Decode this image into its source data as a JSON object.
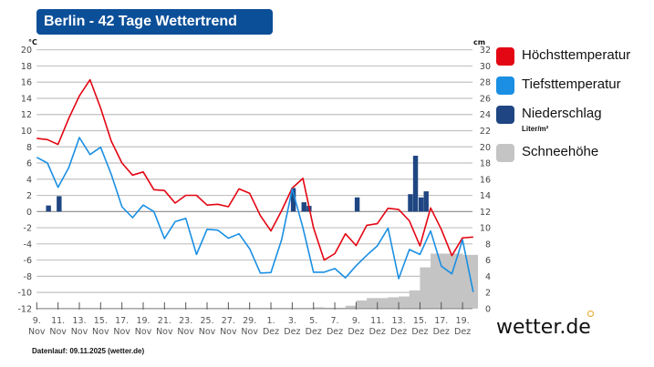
{
  "title": "Berlin - 42 Tage Wettertrend",
  "footer": "Datenlauf: 09.11.2025 (wetter.de)",
  "logo": "wetter.de",
  "legend": {
    "max": {
      "label": "Höchsttemperatur",
      "color": "#e30613"
    },
    "min": {
      "label": "Tiefsttemperatur",
      "color": "#1a8fe3"
    },
    "precip": {
      "label": "Niederschlag",
      "sublabel": "Liter/m²",
      "color": "#1f4682"
    },
    "snow": {
      "label": "Schneehöhe",
      "color": "#c4c4c4"
    }
  },
  "chart_data": {
    "type": "line",
    "title": "Berlin - 42 Tage Wettertrend",
    "y_left": {
      "unit": "°C",
      "range": [
        -12,
        20
      ],
      "ticks": [
        -12,
        -10,
        -8,
        -6,
        -4,
        -2,
        0,
        2,
        4,
        6,
        8,
        10,
        12,
        14,
        16,
        18,
        20
      ]
    },
    "y_right": {
      "unit": "cm",
      "range": [
        0,
        32
      ],
      "ticks": [
        0,
        2,
        4,
        6,
        8,
        10,
        12,
        14,
        16,
        18,
        20,
        22,
        24,
        26,
        28,
        30,
        32
      ]
    },
    "grid": true,
    "legend_position": "right",
    "dates": [
      "9.11.",
      "10.11.",
      "11.11.",
      "12.11.",
      "13.11.",
      "14.11.",
      "15.11.",
      "16.11.",
      "17.11.",
      "18.11.",
      "19.11.",
      "20.11.",
      "21.11.",
      "22.11.",
      "23.11.",
      "24.11.",
      "25.11.",
      "26.11.",
      "27.11.",
      "28.11.",
      "29.11.",
      "30.11.",
      "1.12.",
      "2.12.",
      "3.12.",
      "4.12.",
      "5.12.",
      "6.12.",
      "7.12.",
      "8.12.",
      "9.12.",
      "10.12.",
      "11.12.",
      "12.12.",
      "13.12.",
      "14.12.",
      "15.12.",
      "16.12.",
      "17.12.",
      "18.12.",
      "19.12.",
      "20.12."
    ],
    "x_tick_labels": [
      {
        "day": "9.",
        "month": "Nov"
      },
      {
        "day": "11.",
        "month": "Nov"
      },
      {
        "day": "13.",
        "month": "Nov"
      },
      {
        "day": "15.",
        "month": "Nov"
      },
      {
        "day": "17.",
        "month": "Nov"
      },
      {
        "day": "19.",
        "month": "Nov"
      },
      {
        "day": "21.",
        "month": "Nov"
      },
      {
        "day": "23.",
        "month": "Nov"
      },
      {
        "day": "25.",
        "month": "Nov"
      },
      {
        "day": "27.",
        "month": "Nov"
      },
      {
        "day": "29.",
        "month": "Nov"
      },
      {
        "day": "1.",
        "month": "Dez"
      },
      {
        "day": "3.",
        "month": "Dez"
      },
      {
        "day": "5.",
        "month": "Dez"
      },
      {
        "day": "7.",
        "month": "Dez"
      },
      {
        "day": "9.",
        "month": "Dez"
      },
      {
        "day": "11.",
        "month": "Dez"
      },
      {
        "day": "13.",
        "month": "Dez"
      },
      {
        "day": "15.",
        "month": "Dez"
      },
      {
        "day": "17.",
        "month": "Dez"
      },
      {
        "day": "19.",
        "month": "Dez"
      }
    ],
    "series": [
      {
        "name": "Höchsttemperatur",
        "unit": "°C",
        "values": [
          9.05,
          8.9,
          8.3,
          11.5,
          14.3,
          16.3,
          12.8,
          8.7,
          6.0,
          4.5,
          4.9,
          2.7,
          2.6,
          1.05,
          2.0,
          2.0,
          0.8,
          0.9,
          0.6,
          2.8,
          2.25,
          -0.5,
          -2.4,
          0.1,
          2.9,
          4.1,
          -2.0,
          -6.0,
          -5.2,
          -2.75,
          -4.2,
          -1.7,
          -1.5,
          0.4,
          0.25,
          -1.15,
          -4.25,
          0.45,
          -2.2,
          -5.45,
          -3.25,
          -3.15
        ]
      },
      {
        "name": "Tiefsttemperatur",
        "unit": "°C",
        "values": [
          6.7,
          6.0,
          3.0,
          5.4,
          9.15,
          7.05,
          7.95,
          4.6,
          0.6,
          -0.75,
          0.8,
          0,
          -3.35,
          -1.25,
          -0.85,
          -5.3,
          -2.2,
          -2.3,
          -3.3,
          -2.75,
          -4.6,
          -7.6,
          -7.55,
          -3.5,
          2.8,
          -2.0,
          -7.5,
          -7.5,
          -7.05,
          -8.2,
          -6.7,
          -5.4,
          -4.25,
          -2.05,
          -8.3,
          -4.7,
          -5.3,
          -2.4,
          -6.75,
          -7.7,
          -3.5,
          -9.95
        ]
      },
      {
        "name": "Schneehöhe",
        "unit": "cm",
        "type": "area",
        "values": [
          0,
          0,
          0,
          0,
          0,
          0,
          0,
          0,
          0,
          0,
          0,
          0,
          0,
          0,
          0,
          0,
          0,
          0,
          0,
          0,
          0,
          0,
          0,
          0,
          0,
          0,
          0.15,
          0.1,
          0.1,
          0.35,
          1.0,
          1.3,
          1.3,
          1.4,
          1.5,
          2.25,
          5.1,
          6.8,
          6.8,
          6.8,
          6.65,
          6.65
        ]
      }
    ],
    "precipitation": {
      "name": "Niederschlag",
      "unit": "Liter/m²",
      "type": "bar",
      "values_12h": [
        {
          "date": "10.11.",
          "values": [
            0.75,
            0
          ]
        },
        {
          "date": "11.11.",
          "values": [
            1.9,
            0
          ]
        },
        {
          "date": "3.12.",
          "values": [
            2.9,
            0
          ]
        },
        {
          "date": "4.12.",
          "values": [
            1.15,
            0.7
          ]
        },
        {
          "date": "9.12.",
          "values": [
            1.75,
            0
          ]
        },
        {
          "date": "14.12.",
          "values": [
            2.15,
            6.9
          ]
        },
        {
          "date": "15.12.",
          "values": [
            1.75,
            2.5
          ]
        }
      ]
    }
  }
}
